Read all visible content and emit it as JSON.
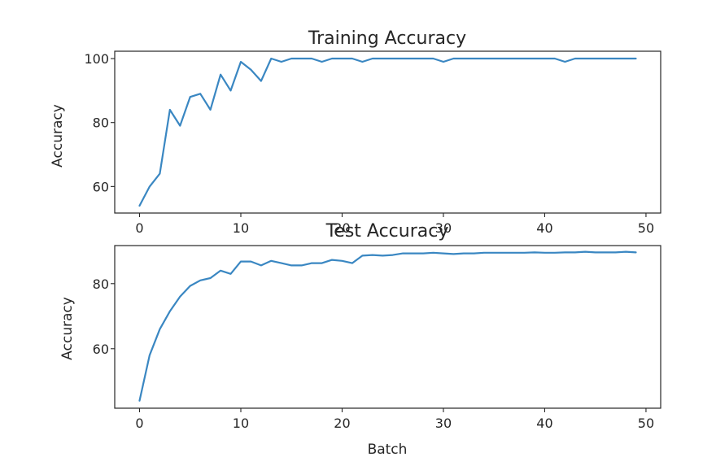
{
  "colors": {
    "series": "#3a87c2",
    "axis": "#262626",
    "background": "#ffffff"
  },
  "chart_data": [
    {
      "type": "line",
      "title": "Training Accuracy",
      "xlabel": "",
      "ylabel": "Accuracy",
      "xlim": [
        -2.45,
        51.45
      ],
      "ylim": [
        51.7,
        102.3
      ],
      "xticks": [
        0,
        10,
        20,
        30,
        40,
        50
      ],
      "yticks": [
        60,
        80,
        100
      ],
      "grid": false,
      "series": [
        {
          "x": [
            0,
            1,
            2,
            3,
            4,
            5,
            6,
            7,
            8,
            9,
            10,
            11,
            12,
            13,
            14,
            15,
            16,
            17,
            18,
            19,
            20,
            21,
            22,
            23,
            24,
            25,
            26,
            27,
            28,
            29,
            30,
            31,
            32,
            33,
            34,
            35,
            36,
            37,
            38,
            39,
            40,
            41,
            42,
            43,
            44,
            45,
            46,
            47,
            48,
            49
          ],
          "y": [
            54,
            60,
            64,
            84,
            79,
            88,
            89,
            84,
            95,
            90,
            99,
            96.5,
            93,
            100,
            99,
            100,
            100,
            100,
            99,
            100,
            100,
            100,
            99,
            100,
            100,
            100,
            100,
            100,
            100,
            100,
            99,
            100,
            100,
            100,
            100,
            100,
            100,
            100,
            100,
            100,
            100,
            100,
            99,
            100,
            100,
            100,
            100,
            100,
            100,
            100
          ]
        }
      ]
    },
    {
      "type": "line",
      "title": "Test Accuracy",
      "xlabel": "Batch",
      "ylabel": "Accuracy",
      "xlim": [
        -2.45,
        51.45
      ],
      "ylim": [
        41.7,
        91.7
      ],
      "xticks": [
        0,
        10,
        20,
        30,
        40,
        50
      ],
      "yticks": [
        60,
        80
      ],
      "grid": false,
      "series": [
        {
          "x": [
            0,
            1,
            2,
            3,
            4,
            5,
            6,
            7,
            8,
            9,
            10,
            11,
            12,
            13,
            14,
            15,
            16,
            17,
            18,
            19,
            20,
            21,
            22,
            23,
            24,
            25,
            26,
            27,
            28,
            29,
            30,
            31,
            32,
            33,
            34,
            35,
            36,
            37,
            38,
            39,
            40,
            41,
            42,
            43,
            44,
            45,
            46,
            47,
            48,
            49
          ],
          "y": [
            44,
            58,
            66,
            71.5,
            76,
            79.3,
            81,
            81.7,
            84,
            83,
            86.8,
            86.8,
            85.6,
            87,
            86.3,
            85.6,
            85.6,
            86.3,
            86.3,
            87.3,
            87,
            86.3,
            88.6,
            88.8,
            88.6,
            88.8,
            89.3,
            89.3,
            89.3,
            89.5,
            89.3,
            89.1,
            89.3,
            89.3,
            89.5,
            89.5,
            89.5,
            89.5,
            89.5,
            89.6,
            89.5,
            89.5,
            89.6,
            89.6,
            89.8,
            89.6,
            89.6,
            89.6,
            89.8,
            89.6
          ]
        }
      ]
    }
  ]
}
